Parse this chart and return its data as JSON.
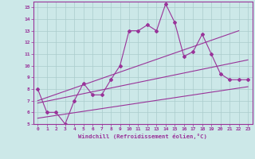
{
  "xlabel": "Windchill (Refroidissement éolien,°C)",
  "background_color": "#cce8e8",
  "grid_color": "#aacccc",
  "line_color": "#993399",
  "xlim": [
    -0.5,
    23.5
  ],
  "ylim": [
    5,
    15.5
  ],
  "yticks": [
    5,
    6,
    7,
    8,
    9,
    10,
    11,
    12,
    13,
    14,
    15
  ],
  "xticks": [
    0,
    1,
    2,
    3,
    4,
    5,
    6,
    7,
    8,
    9,
    10,
    11,
    12,
    13,
    14,
    15,
    16,
    17,
    18,
    19,
    20,
    21,
    22,
    23
  ],
  "series": {
    "zigzag": {
      "x": [
        0,
        1,
        2,
        3,
        4,
        5,
        6,
        7,
        8,
        9,
        10,
        11,
        12,
        13,
        14,
        15,
        16,
        17,
        18,
        19,
        20,
        21,
        22,
        23
      ],
      "y": [
        8.0,
        6.0,
        6.0,
        5.0,
        7.0,
        8.5,
        7.5,
        7.5,
        8.8,
        10.0,
        13.0,
        13.0,
        13.5,
        13.0,
        15.3,
        13.7,
        10.8,
        11.2,
        12.7,
        11.0,
        9.3,
        8.8,
        8.8,
        8.8
      ]
    },
    "line1": {
      "x": [
        0,
        23
      ],
      "y": [
        5.5,
        8.2
      ]
    },
    "line2": {
      "x": [
        0,
        23
      ],
      "y": [
        6.8,
        10.5
      ]
    },
    "line3": {
      "x": [
        0,
        22
      ],
      "y": [
        7.0,
        13.0
      ]
    }
  }
}
